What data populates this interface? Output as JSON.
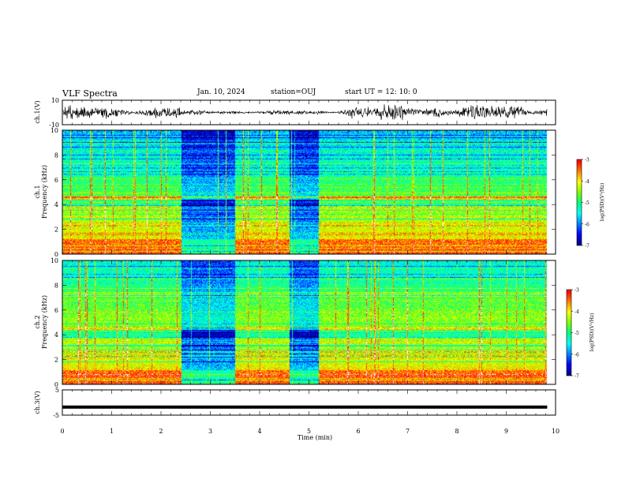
{
  "header": {
    "title": "VLF Spectra",
    "date": "Jan. 10, 2024",
    "station": "station=OUJ",
    "start": "start  UT  =   12: 10: 0"
  },
  "chart_data": [
    {
      "type": "line",
      "panel": "ch1-waveform",
      "ylabel": "ch.1(V)",
      "ylim": [
        -10,
        10
      ],
      "yticks": [
        "10",
        "-10"
      ],
      "xlim": [
        0,
        10
      ]
    },
    {
      "type": "heatmap",
      "panel": "ch1-spectrogram",
      "ylabel_line1": "ch.1",
      "ylabel_line2": "Frequency (kHz)",
      "ylim": [
        0,
        10
      ],
      "yticks": [
        "0",
        "2",
        "4",
        "6",
        "8",
        "10"
      ],
      "xlim": [
        0,
        10
      ],
      "quiet_intervals_min": [
        [
          2.4,
          3.5
        ],
        [
          4.6,
          5.2
        ]
      ],
      "colorbar": {
        "label": "log(PSD)(V²/Hz)",
        "range": [
          -7,
          -3
        ],
        "ticks": [
          "-3",
          "-4",
          "-5",
          "-6",
          "-7"
        ]
      }
    },
    {
      "type": "heatmap",
      "panel": "ch2-spectrogram",
      "ylabel_line1": "ch.2",
      "ylabel_line2": "Frequency (kHz)",
      "ylim": [
        0,
        10
      ],
      "yticks": [
        "0",
        "2",
        "4",
        "6",
        "8",
        "10"
      ],
      "xlim": [
        0,
        10
      ],
      "quiet_intervals_min": [
        [
          2.4,
          3.5
        ],
        [
          4.6,
          5.2
        ]
      ],
      "colorbar": {
        "label": "log(PSD)(V²/Hz)",
        "range": [
          -7,
          -3
        ],
        "ticks": [
          "-3",
          "-4",
          "-5",
          "-6",
          "-7"
        ]
      }
    },
    {
      "type": "line",
      "panel": "ch3-waveform",
      "ylabel": "ch.3(V)",
      "ylim": [
        -5,
        5
      ],
      "yticks": [
        "5",
        "-5"
      ],
      "xlim": [
        0,
        10
      ],
      "value_level": -1.8,
      "xlabel": "Time  (min)",
      "xticks": [
        "0",
        "1",
        "2",
        "3",
        "4",
        "5",
        "6",
        "7",
        "8",
        "9",
        "10"
      ]
    }
  ],
  "colors": {
    "scale": [
      "#000080",
      "#0000ff",
      "#0080ff",
      "#00ffff",
      "#00ff80",
      "#80ff00",
      "#ffff00",
      "#ff8000",
      "#ff0000",
      "#ffffff"
    ]
  }
}
